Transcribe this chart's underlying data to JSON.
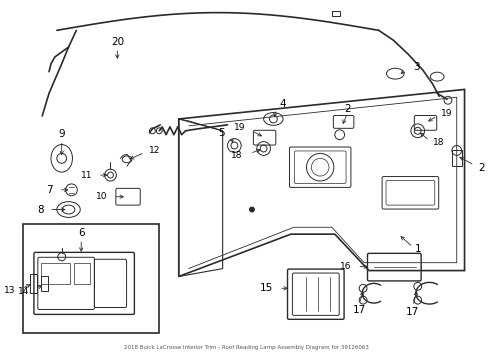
{
  "title": "2018 Buick LaCrosse Interior Trim - Roof Reading Lamp Assembly Diagram for 39126063",
  "bg_color": "#ffffff",
  "line_color": "#2a2a2a",
  "label_color": "#000000",
  "figsize": [
    4.89,
    3.6
  ],
  "dpi": 100
}
